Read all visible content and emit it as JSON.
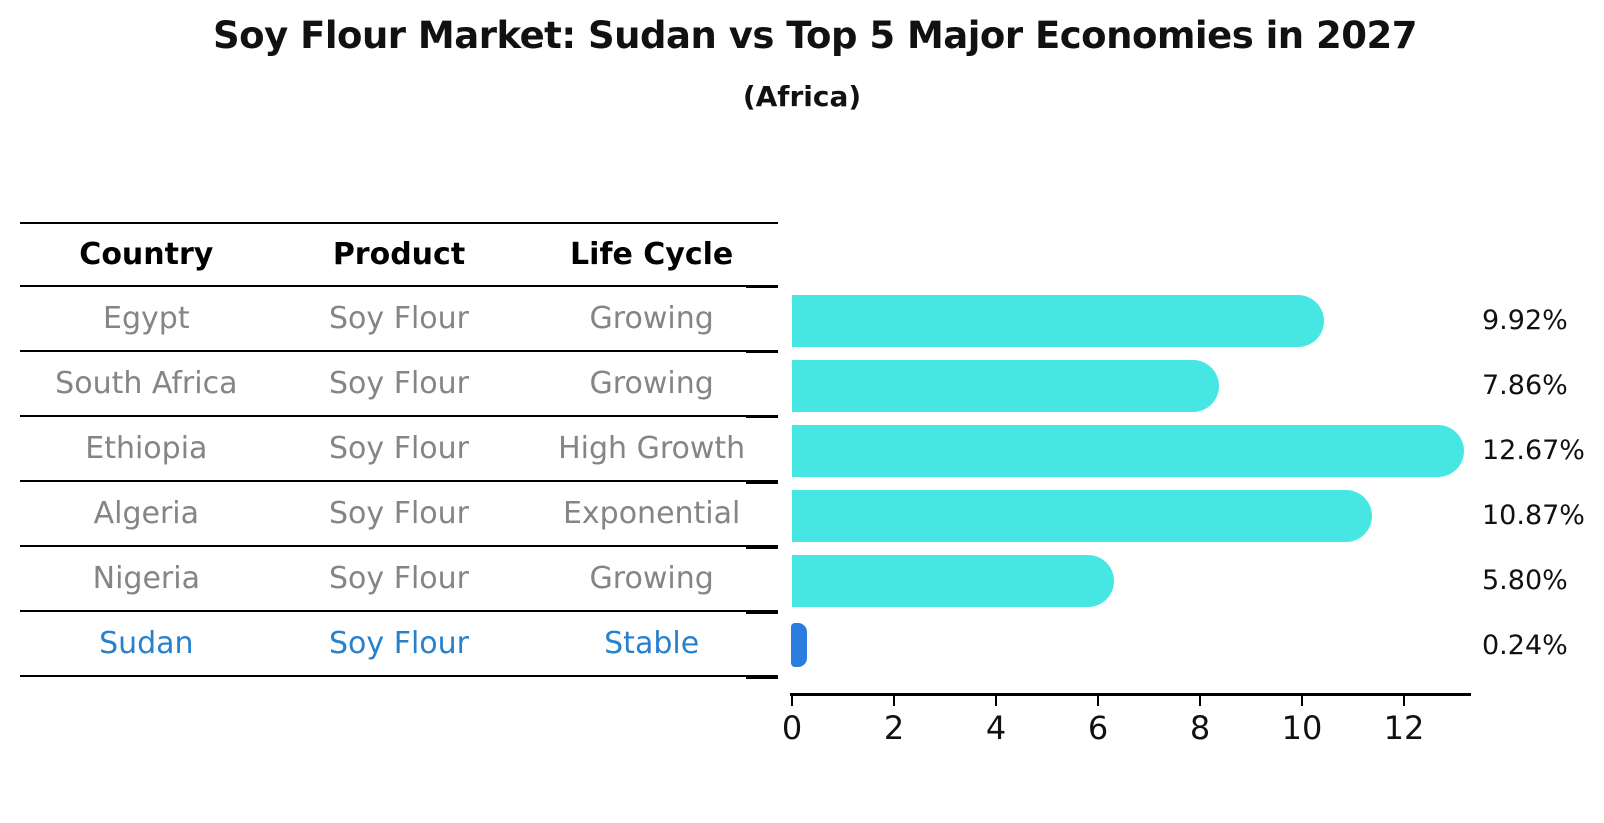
{
  "title": "Soy Flour Market: Sudan vs Top 5 Major Economies in 2027",
  "subtitle": "(Africa)",
  "table": {
    "headers": [
      "Country",
      "Product",
      "Life Cycle"
    ],
    "rows": [
      {
        "country": "Egypt",
        "product": "Soy Flour",
        "life_cycle": "Growing",
        "highlight": false
      },
      {
        "country": "South Africa",
        "product": "Soy Flour",
        "life_cycle": "Growing",
        "highlight": false
      },
      {
        "country": "Ethiopia",
        "product": "Soy Flour",
        "life_cycle": "High Growth",
        "highlight": false
      },
      {
        "country": "Algeria",
        "product": "Soy Flour",
        "life_cycle": "Exponential",
        "highlight": false
      },
      {
        "country": "Nigeria",
        "product": "Soy Flour",
        "life_cycle": "Growing",
        "highlight": false
      },
      {
        "country": "Sudan",
        "product": "Soy Flour",
        "life_cycle": "Stable",
        "highlight": true
      }
    ]
  },
  "chart_data": {
    "type": "bar",
    "orientation": "horizontal",
    "title": "Soy Flour Market: Sudan vs Top 5 Major Economies in 2027",
    "subtitle": "(Africa)",
    "categories": [
      "Egypt",
      "South Africa",
      "Ethiopia",
      "Algeria",
      "Nigeria",
      "Sudan"
    ],
    "values": [
      9.92,
      7.86,
      12.67,
      10.87,
      5.8,
      0.24
    ],
    "value_labels": [
      "9.92%",
      "7.86%",
      "12.67%",
      "10.87%",
      "5.80%",
      "0.24%"
    ],
    "x_ticks": [
      "0",
      "2",
      "4",
      "6",
      "8",
      "10",
      "12"
    ],
    "xlim": [
      0,
      13.3
    ],
    "xlabel": "",
    "ylabel": "",
    "grid": false,
    "legend": "none",
    "highlight_index": 5,
    "bar_color_default": "#46e7e3",
    "bar_color_highlight": "#2a7ce0",
    "highlight_text_color": "#2781cd"
  }
}
